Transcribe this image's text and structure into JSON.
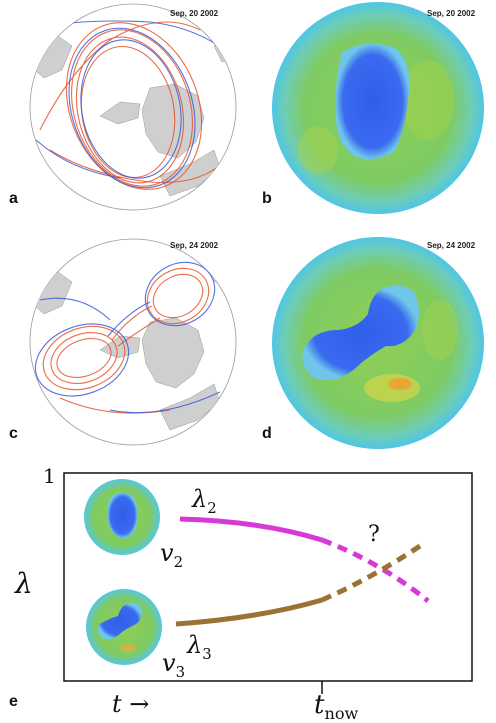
{
  "panels": [
    {
      "letter": "a",
      "date": "Sep, 20 2002"
    },
    {
      "letter": "b",
      "date": "Sep, 20 2002"
    },
    {
      "letter": "c",
      "date": "Sep, 24 2002"
    },
    {
      "letter": "d",
      "date": "Sep, 24 2002"
    }
  ],
  "diagram": {
    "letter": "e",
    "y_axis_label": "λ",
    "y_tick": "1",
    "x_axis_label": "t →",
    "x_tick_main": "t",
    "x_tick_sub": "now",
    "question_mark": "?",
    "lambda2_main": "λ",
    "lambda2_sub": "2",
    "lambda3_main": "λ",
    "lambda3_sub": "3",
    "v2_main": "v",
    "v2_sub": "2",
    "v3_main": "v",
    "v3_sub": "3",
    "colors": {
      "lambda2": "#d63ad6",
      "lambda3": "#9a7234"
    }
  }
}
